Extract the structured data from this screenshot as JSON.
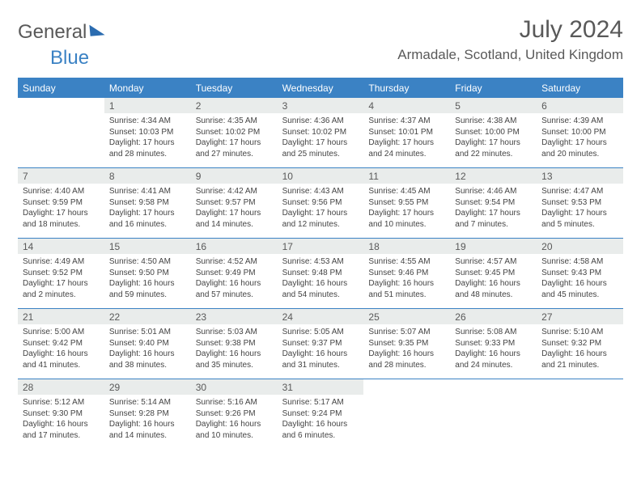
{
  "logo": {
    "part1": "General",
    "part2": "Blue"
  },
  "title": "July 2024",
  "subtitle": "Armadale, Scotland, United Kingdom",
  "day_names": [
    "Sunday",
    "Monday",
    "Tuesday",
    "Wednesday",
    "Thursday",
    "Friday",
    "Saturday"
  ],
  "colors": {
    "accent": "#3b82c4",
    "header_bg": "#3b82c4",
    "daynum_bg": "#e9eceb",
    "text": "#595959"
  },
  "weeks": [
    [
      {
        "num": "",
        "lines": []
      },
      {
        "num": "1",
        "lines": [
          "Sunrise: 4:34 AM",
          "Sunset: 10:03 PM",
          "Daylight: 17 hours and 28 minutes."
        ]
      },
      {
        "num": "2",
        "lines": [
          "Sunrise: 4:35 AM",
          "Sunset: 10:02 PM",
          "Daylight: 17 hours and 27 minutes."
        ]
      },
      {
        "num": "3",
        "lines": [
          "Sunrise: 4:36 AM",
          "Sunset: 10:02 PM",
          "Daylight: 17 hours and 25 minutes."
        ]
      },
      {
        "num": "4",
        "lines": [
          "Sunrise: 4:37 AM",
          "Sunset: 10:01 PM",
          "Daylight: 17 hours and 24 minutes."
        ]
      },
      {
        "num": "5",
        "lines": [
          "Sunrise: 4:38 AM",
          "Sunset: 10:00 PM",
          "Daylight: 17 hours and 22 minutes."
        ]
      },
      {
        "num": "6",
        "lines": [
          "Sunrise: 4:39 AM",
          "Sunset: 10:00 PM",
          "Daylight: 17 hours and 20 minutes."
        ]
      }
    ],
    [
      {
        "num": "7",
        "lines": [
          "Sunrise: 4:40 AM",
          "Sunset: 9:59 PM",
          "Daylight: 17 hours and 18 minutes."
        ]
      },
      {
        "num": "8",
        "lines": [
          "Sunrise: 4:41 AM",
          "Sunset: 9:58 PM",
          "Daylight: 17 hours and 16 minutes."
        ]
      },
      {
        "num": "9",
        "lines": [
          "Sunrise: 4:42 AM",
          "Sunset: 9:57 PM",
          "Daylight: 17 hours and 14 minutes."
        ]
      },
      {
        "num": "10",
        "lines": [
          "Sunrise: 4:43 AM",
          "Sunset: 9:56 PM",
          "Daylight: 17 hours and 12 minutes."
        ]
      },
      {
        "num": "11",
        "lines": [
          "Sunrise: 4:45 AM",
          "Sunset: 9:55 PM",
          "Daylight: 17 hours and 10 minutes."
        ]
      },
      {
        "num": "12",
        "lines": [
          "Sunrise: 4:46 AM",
          "Sunset: 9:54 PM",
          "Daylight: 17 hours and 7 minutes."
        ]
      },
      {
        "num": "13",
        "lines": [
          "Sunrise: 4:47 AM",
          "Sunset: 9:53 PM",
          "Daylight: 17 hours and 5 minutes."
        ]
      }
    ],
    [
      {
        "num": "14",
        "lines": [
          "Sunrise: 4:49 AM",
          "Sunset: 9:52 PM",
          "Daylight: 17 hours and 2 minutes."
        ]
      },
      {
        "num": "15",
        "lines": [
          "Sunrise: 4:50 AM",
          "Sunset: 9:50 PM",
          "Daylight: 16 hours and 59 minutes."
        ]
      },
      {
        "num": "16",
        "lines": [
          "Sunrise: 4:52 AM",
          "Sunset: 9:49 PM",
          "Daylight: 16 hours and 57 minutes."
        ]
      },
      {
        "num": "17",
        "lines": [
          "Sunrise: 4:53 AM",
          "Sunset: 9:48 PM",
          "Daylight: 16 hours and 54 minutes."
        ]
      },
      {
        "num": "18",
        "lines": [
          "Sunrise: 4:55 AM",
          "Sunset: 9:46 PM",
          "Daylight: 16 hours and 51 minutes."
        ]
      },
      {
        "num": "19",
        "lines": [
          "Sunrise: 4:57 AM",
          "Sunset: 9:45 PM",
          "Daylight: 16 hours and 48 minutes."
        ]
      },
      {
        "num": "20",
        "lines": [
          "Sunrise: 4:58 AM",
          "Sunset: 9:43 PM",
          "Daylight: 16 hours and 45 minutes."
        ]
      }
    ],
    [
      {
        "num": "21",
        "lines": [
          "Sunrise: 5:00 AM",
          "Sunset: 9:42 PM",
          "Daylight: 16 hours and 41 minutes."
        ]
      },
      {
        "num": "22",
        "lines": [
          "Sunrise: 5:01 AM",
          "Sunset: 9:40 PM",
          "Daylight: 16 hours and 38 minutes."
        ]
      },
      {
        "num": "23",
        "lines": [
          "Sunrise: 5:03 AM",
          "Sunset: 9:38 PM",
          "Daylight: 16 hours and 35 minutes."
        ]
      },
      {
        "num": "24",
        "lines": [
          "Sunrise: 5:05 AM",
          "Sunset: 9:37 PM",
          "Daylight: 16 hours and 31 minutes."
        ]
      },
      {
        "num": "25",
        "lines": [
          "Sunrise: 5:07 AM",
          "Sunset: 9:35 PM",
          "Daylight: 16 hours and 28 minutes."
        ]
      },
      {
        "num": "26",
        "lines": [
          "Sunrise: 5:08 AM",
          "Sunset: 9:33 PM",
          "Daylight: 16 hours and 24 minutes."
        ]
      },
      {
        "num": "27",
        "lines": [
          "Sunrise: 5:10 AM",
          "Sunset: 9:32 PM",
          "Daylight: 16 hours and 21 minutes."
        ]
      }
    ],
    [
      {
        "num": "28",
        "lines": [
          "Sunrise: 5:12 AM",
          "Sunset: 9:30 PM",
          "Daylight: 16 hours and 17 minutes."
        ]
      },
      {
        "num": "29",
        "lines": [
          "Sunrise: 5:14 AM",
          "Sunset: 9:28 PM",
          "Daylight: 16 hours and 14 minutes."
        ]
      },
      {
        "num": "30",
        "lines": [
          "Sunrise: 5:16 AM",
          "Sunset: 9:26 PM",
          "Daylight: 16 hours and 10 minutes."
        ]
      },
      {
        "num": "31",
        "lines": [
          "Sunrise: 5:17 AM",
          "Sunset: 9:24 PM",
          "Daylight: 16 hours and 6 minutes."
        ]
      },
      {
        "num": "",
        "lines": []
      },
      {
        "num": "",
        "lines": []
      },
      {
        "num": "",
        "lines": []
      }
    ]
  ]
}
